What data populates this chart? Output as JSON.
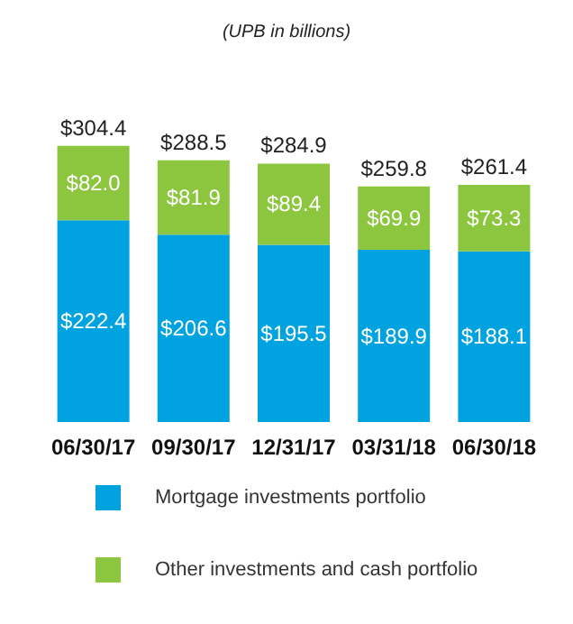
{
  "chart_data": {
    "type": "bar",
    "title": "(UPB in billions)",
    "stacked": true,
    "categories": [
      "06/30/17",
      "09/30/17",
      "12/31/17",
      "03/31/18",
      "06/30/18"
    ],
    "series": [
      {
        "name": "Mortgage investments portfolio",
        "color": "#00a3e0",
        "values": [
          222.4,
          206.6,
          195.5,
          189.9,
          188.1
        ],
        "value_labels": [
          "$222.4",
          "$206.6",
          "$195.5",
          "$189.9",
          "$188.1"
        ]
      },
      {
        "name": "Other investments and cash portfolio",
        "color": "#8cc63f",
        "values": [
          82.0,
          81.9,
          89.4,
          69.9,
          73.3
        ],
        "value_labels": [
          "$82.0",
          "$81.9",
          "$89.4",
          "$69.9",
          "$73.3"
        ]
      }
    ],
    "totals": [
      "$304.4",
      "$288.5",
      "$284.9",
      "$259.8",
      "$261.4"
    ],
    "legend": "bottom"
  }
}
